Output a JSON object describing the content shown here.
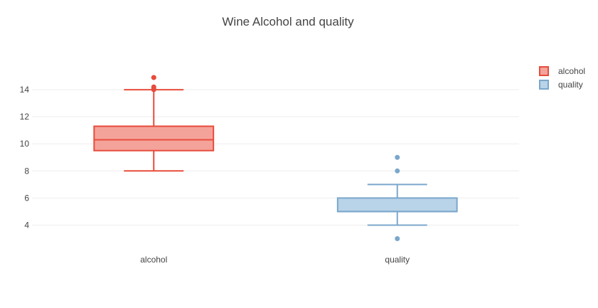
{
  "chart_data": {
    "type": "box",
    "title": "Wine Alcohol and quality",
    "xlabel": "",
    "ylabel": "",
    "categories": [
      "alcohol",
      "quality"
    ],
    "ylim": [
      2.5,
      16.0
    ],
    "yticks": [
      4,
      6,
      8,
      10,
      12,
      14
    ],
    "grid": true,
    "legend_position": "top-right",
    "series": [
      {
        "name": "alcohol",
        "category": "alcohol",
        "color": "#e74c3c",
        "fill": "#f4a39b",
        "min": 8.0,
        "q1": 9.5,
        "median": 10.3,
        "q3": 11.3,
        "max": 14.0,
        "outliers": [
          14.0,
          14.1,
          14.2,
          14.9,
          14.9
        ]
      },
      {
        "name": "quality",
        "category": "quality",
        "color": "#7ba7cc",
        "fill": "#b9d3e8",
        "min": 4,
        "q1": 5,
        "median": 5,
        "q3": 6,
        "max": 7,
        "outliers": [
          3,
          8,
          9
        ]
      }
    ]
  }
}
